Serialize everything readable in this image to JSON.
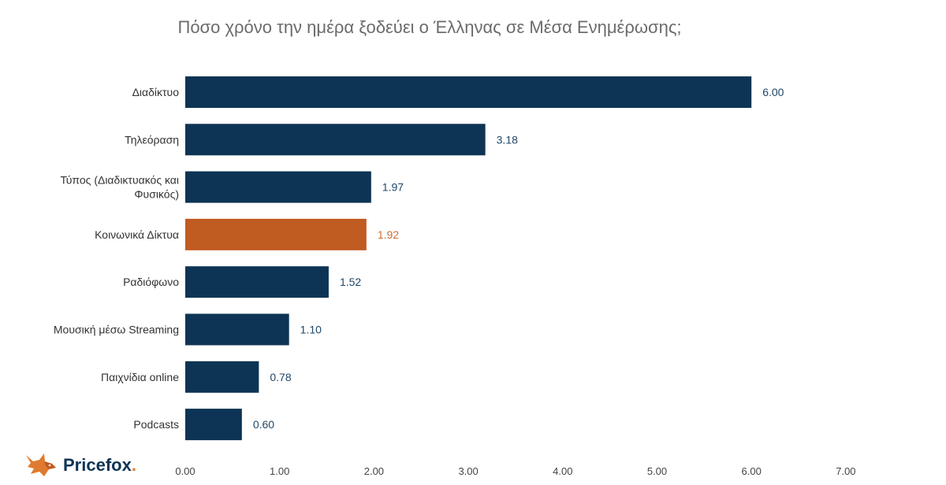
{
  "chart_data": {
    "type": "bar",
    "orientation": "horizontal",
    "title": "Πόσο χρόνο την ημέρα ξοδεύει ο Έλληνας σε Μέσα Ενημέρωσης;",
    "categories": [
      [
        "Διαδίκτυο"
      ],
      [
        "Τηλεόραση"
      ],
      [
        "Τύπος (Διαδικτυακός και",
        "Φυσικός)"
      ],
      [
        "Κοινωνικά Δίκτυα"
      ],
      [
        "Ραδιόφωνο"
      ],
      [
        "Μουσική μέσω Streaming"
      ],
      [
        "Παιχνίδια online"
      ],
      [
        "Podcasts"
      ]
    ],
    "values": [
      6.0,
      3.18,
      1.97,
      1.92,
      1.52,
      1.1,
      0.78,
      0.6
    ],
    "value_labels": [
      "6.00",
      "3.18",
      "1.97",
      "1.92",
      "1.52",
      "1.10",
      "0.78",
      "0.60"
    ],
    "highlight_index": 3,
    "xlim": [
      0,
      7
    ],
    "x_ticks": [
      "0.00",
      "1.00",
      "2.00",
      "3.00",
      "4.00",
      "5.00",
      "6.00",
      "7.00"
    ],
    "grid": false,
    "legend": "none",
    "colors": {
      "bar": "#0d3454",
      "highlight": "#c05b21",
      "label": "#1f4768",
      "highlight_label": "#c96f35"
    }
  },
  "logo": {
    "name": "Pricefox",
    "dot": ".",
    "icon": "fox-icon"
  }
}
